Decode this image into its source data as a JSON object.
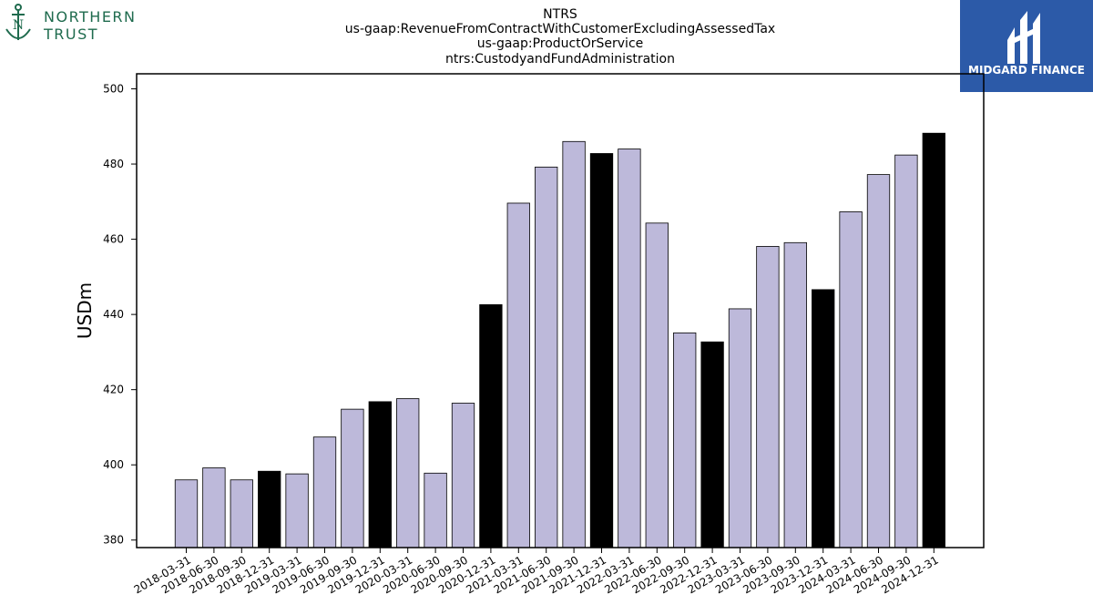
{
  "logos": {
    "left_text_1": "NORTHERN",
    "left_text_2": "TRUST",
    "right_text": "MIDGARD FINANCE"
  },
  "colors": {
    "bar_default": "#bdb9da",
    "bar_highlight": "#000000",
    "logo_left": "#1f6b4e",
    "logo_right_bg": "#2c5aa8"
  },
  "chart_data": {
    "type": "bar",
    "title_lines": [
      "NTRS",
      "us-gaap:RevenueFromContractWithCustomerExcludingAssessedTax",
      "us-gaap:ProductOrService",
      "ntrs:CustodyandFundAdministration"
    ],
    "xlabel": "",
    "ylabel": "USDm",
    "ylim": [
      378,
      504
    ],
    "yticks": [
      380,
      400,
      420,
      440,
      460,
      480,
      500
    ],
    "grid": false,
    "categories": [
      "2018-03-31",
      "2018-06-30",
      "2018-09-30",
      "2018-12-31",
      "2019-03-31",
      "2019-06-30",
      "2019-09-30",
      "2019-12-31",
      "2020-03-31",
      "2020-06-30",
      "2020-09-30",
      "2020-12-31",
      "2021-03-31",
      "2021-06-30",
      "2021-09-30",
      "2021-12-31",
      "2022-03-31",
      "2022-06-30",
      "2022-09-30",
      "2022-12-31",
      "2023-03-31",
      "2023-06-30",
      "2023-09-30",
      "2023-12-31",
      "2024-03-31",
      "2024-06-30",
      "2024-09-30",
      "2024-12-31"
    ],
    "values": [
      396.0,
      399.2,
      396.0,
      398.3,
      397.6,
      407.4,
      414.8,
      416.8,
      417.6,
      397.8,
      416.4,
      442.6,
      469.6,
      479.2,
      486.0,
      482.8,
      484.0,
      464.3,
      435.1,
      432.7,
      441.5,
      458.1,
      459.1,
      446.6,
      467.3,
      477.2,
      482.4,
      488.2
    ],
    "highlight_quarter": "12-31"
  }
}
